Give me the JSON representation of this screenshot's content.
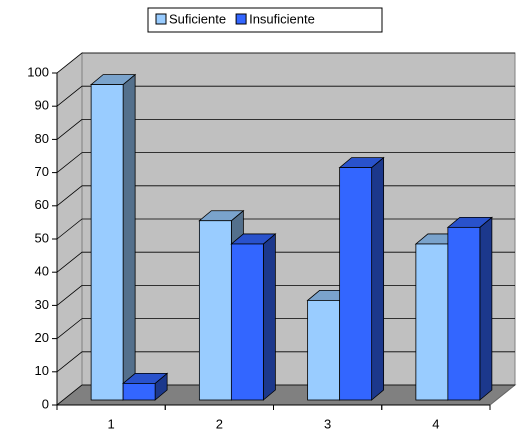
{
  "chart_data": {
    "type": "bar3d",
    "categories": [
      "1",
      "2",
      "3",
      "4"
    ],
    "series": [
      {
        "name": "Suficiente",
        "color": "#99ccff",
        "values": [
          95,
          54,
          30,
          47
        ]
      },
      {
        "name": "Insuficiente",
        "color": "#3366ff",
        "values": [
          5,
          47,
          70,
          52
        ]
      }
    ],
    "ylim": [
      0,
      100
    ],
    "yticks": [
      0,
      10,
      20,
      30,
      40,
      50,
      60,
      70,
      80,
      90,
      100
    ],
    "grid": true,
    "legend": "top"
  }
}
